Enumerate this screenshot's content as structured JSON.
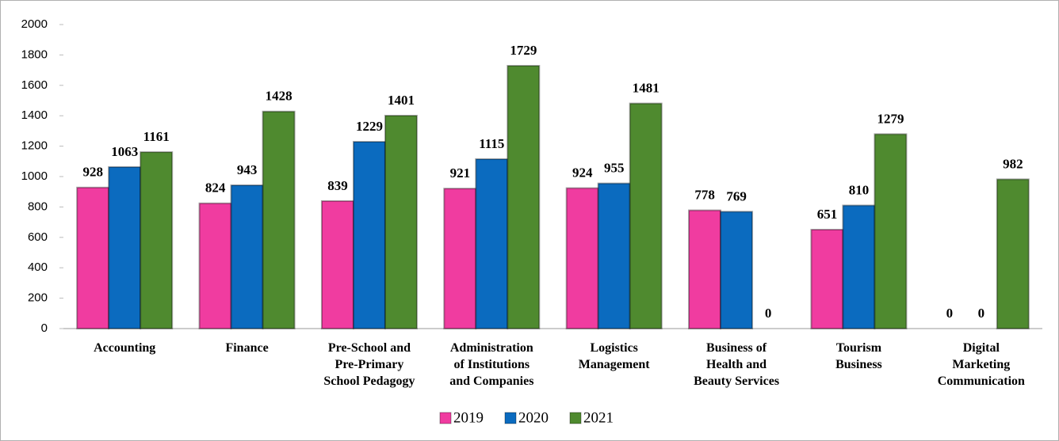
{
  "chart_data": {
    "type": "bar",
    "categories": [
      "Accounting",
      "Finance",
      "Pre-School and\nPre-Primary\nSchool Pedagogy",
      "Administration\nof Institutions\nand Companies",
      "Logistics\nManagement",
      "Business of\nHealth and\nBeauty Services",
      "Tourism\nBusiness",
      "Digital\nMarketing\nCommunication"
    ],
    "series": [
      {
        "name": "2019",
        "color": "#f03ca0",
        "values": [
          928,
          824,
          839,
          921,
          924,
          778,
          651,
          0
        ]
      },
      {
        "name": "2020",
        "color": "#0b6bbf",
        "values": [
          1063,
          943,
          1229,
          1115,
          955,
          769,
          810,
          0
        ]
      },
      {
        "name": "2021",
        "color": "#4f8a2f",
        "values": [
          1161,
          1428,
          1401,
          1729,
          1481,
          0,
          1279,
          982
        ]
      }
    ],
    "ylim": [
      0,
      2000
    ],
    "yticks": [
      0,
      200,
      400,
      600,
      800,
      1000,
      1200,
      1400,
      1600,
      1800,
      2000
    ],
    "legend": "bottom"
  }
}
